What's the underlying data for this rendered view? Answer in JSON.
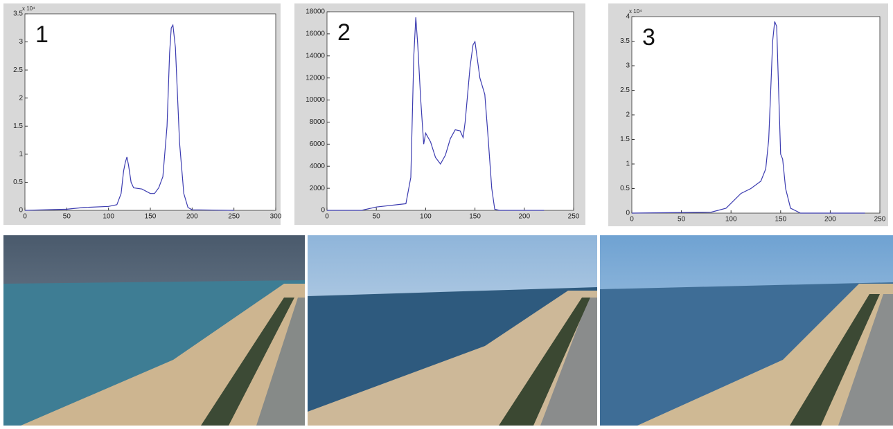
{
  "chart_data": [
    {
      "type": "line",
      "annotation": "1",
      "y_scale_label": "x 10⁴",
      "x": [
        0,
        50,
        70,
        100,
        110,
        115,
        118,
        120,
        122,
        124,
        127,
        130,
        140,
        150,
        155,
        160,
        165,
        170,
        173,
        175,
        177,
        180,
        185,
        190,
        195,
        200,
        250
      ],
      "values": [
        0,
        0.02,
        0.05,
        0.07,
        0.1,
        0.3,
        0.7,
        0.85,
        0.95,
        0.8,
        0.5,
        0.4,
        0.38,
        0.3,
        0.3,
        0.4,
        0.6,
        1.5,
        2.8,
        3.25,
        3.3,
        2.9,
        1.2,
        0.3,
        0.05,
        0.01,
        0
      ],
      "color": "#3b3bb0",
      "xlim": [
        0,
        300
      ],
      "xticks": [
        0,
        50,
        100,
        150,
        200,
        250,
        300
      ],
      "ylim": [
        0,
        3.5
      ],
      "yticks": [
        0,
        0.5,
        1,
        1.5,
        2,
        2.5,
        3,
        3.5
      ]
    },
    {
      "type": "line",
      "annotation": "2",
      "x": [
        0,
        35,
        50,
        70,
        80,
        85,
        88,
        90,
        92,
        95,
        98,
        100,
        105,
        110,
        115,
        120,
        125,
        130,
        135,
        138,
        140,
        145,
        148,
        150,
        152,
        155,
        160,
        163,
        167,
        170,
        175,
        220
      ],
      "values": [
        0,
        0,
        300,
        500,
        600,
        3000,
        14000,
        17500,
        15000,
        10000,
        6000,
        7000,
        6200,
        4800,
        4200,
        5000,
        6500,
        7300,
        7200,
        6600,
        8000,
        13000,
        15000,
        15300,
        14000,
        12000,
        10500,
        7000,
        2000,
        100,
        0,
        0
      ],
      "color": "#3b3bb0",
      "xlim": [
        0,
        250
      ],
      "xticks": [
        0,
        50,
        100,
        150,
        200,
        250
      ],
      "ylim": [
        0,
        18000
      ],
      "yticks": [
        0,
        2000,
        4000,
        6000,
        8000,
        10000,
        12000,
        14000,
        16000,
        18000
      ]
    },
    {
      "type": "line",
      "annotation": "3",
      "y_scale_label": "x 10⁴",
      "x": [
        0,
        80,
        95,
        100,
        110,
        120,
        130,
        135,
        138,
        140,
        142,
        144,
        146,
        148,
        150,
        152,
        155,
        160,
        170,
        235
      ],
      "values": [
        0,
        0.02,
        0.1,
        0.2,
        0.4,
        0.5,
        0.65,
        0.9,
        1.5,
        2.5,
        3.5,
        3.9,
        3.8,
        2.5,
        1.2,
        1.1,
        0.5,
        0.1,
        0,
        0
      ],
      "color": "#3b3bb0",
      "xlim": [
        0,
        250
      ],
      "xticks": [
        0,
        50,
        100,
        150,
        200,
        250
      ],
      "ylim": [
        0,
        4
      ],
      "yticks": [
        0,
        0.5,
        1,
        1.5,
        2,
        2.5,
        3,
        3.5,
        4
      ]
    }
  ]
}
